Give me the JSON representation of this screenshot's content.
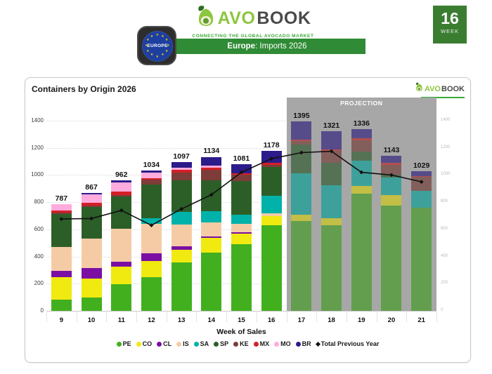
{
  "header": {
    "logo": {
      "avo": "AVO",
      "book": "BOOK",
      "tagline": "CONNECTING THE GLOBAL AVOCADO MARKET"
    },
    "region_badge": {
      "label": "EUROPE"
    },
    "banner": {
      "bold": "Europe",
      "rest": ": Imports 2026"
    },
    "week_badge": {
      "number": "16",
      "label": "WEEK"
    }
  },
  "card": {
    "title": "Containers by Origin 2026",
    "mini_logo": {
      "avo": "AVO",
      "book": "BOOK"
    }
  },
  "chart_data": {
    "type": "bar",
    "stacked": true,
    "title": "Containers by Origin 2026",
    "xlabel": "Week of Sales",
    "categories": [
      9,
      10,
      11,
      12,
      13,
      14,
      15,
      16,
      17,
      18,
      19,
      20,
      21
    ],
    "ylim": [
      0,
      1400
    ],
    "yticks": [
      0,
      200,
      400,
      600,
      800,
      1000,
      1200,
      1400
    ],
    "grid": "dotted-horizontal",
    "legend_position": "bottom",
    "projection": {
      "label": "PROJECTION",
      "start_week": 17,
      "band_color": "#a7a7a7"
    },
    "totals": [
      787,
      867,
      962,
      1034,
      1097,
      1134,
      1081,
      1178,
      1395,
      1321,
      1336,
      1143,
      1029
    ],
    "series": [
      {
        "name": "PE",
        "color": "#42b01e",
        "values": [
          85,
          100,
          197,
          250,
          355,
          430,
          490,
          630,
          660,
          630,
          865,
          775,
          760
        ]
      },
      {
        "name": "CO",
        "color": "#f0ea10",
        "values": [
          165,
          140,
          128,
          117,
          95,
          105,
          80,
          70,
          50,
          50,
          55,
          75,
          0
        ]
      },
      {
        "name": "CL",
        "color": "#7b0fa3",
        "values": [
          42,
          75,
          38,
          58,
          25,
          15,
          10,
          0,
          0,
          0,
          0,
          0,
          0
        ]
      },
      {
        "name": "IS",
        "color": "#f5cba6",
        "values": [
          178,
          215,
          242,
          215,
          160,
          100,
          60,
          18,
          0,
          0,
          0,
          0,
          0
        ]
      },
      {
        "name": "SA",
        "color": "#00b2a9",
        "values": [
          0,
          0,
          0,
          40,
          95,
          85,
          70,
          130,
          305,
          245,
          185,
          130,
          125
        ]
      },
      {
        "name": "SP",
        "color": "#2c5f28",
        "values": [
          245,
          235,
          235,
          250,
          230,
          225,
          245,
          210,
          210,
          165,
          70,
          20,
          0
        ]
      },
      {
        "name": "KE",
        "color": "#7e3c38",
        "values": [
          8,
          8,
          15,
          35,
          60,
          80,
          45,
          18,
          25,
          90,
          80,
          75,
          100
        ]
      },
      {
        "name": "MX",
        "color": "#d41f26",
        "values": [
          18,
          22,
          22,
          12,
          20,
          15,
          15,
          14,
          10,
          10,
          15,
          15,
          5
        ]
      },
      {
        "name": "MO",
        "color": "#ffabdd",
        "values": [
          46,
          65,
          68,
          43,
          12,
          15,
          0,
          0,
          0,
          0,
          0,
          0,
          0
        ]
      },
      {
        "name": "BR",
        "color": "#2c1b8a",
        "values": [
          0,
          7,
          17,
          14,
          45,
          64,
          66,
          88,
          135,
          131,
          66,
          53,
          39
        ]
      }
    ],
    "line": {
      "name": "Total Previous Year",
      "color": "#111111",
      "values": [
        676,
        680,
        740,
        630,
        750,
        855,
        1020,
        1120,
        1165,
        1175,
        1020,
        1000,
        950
      ]
    }
  }
}
